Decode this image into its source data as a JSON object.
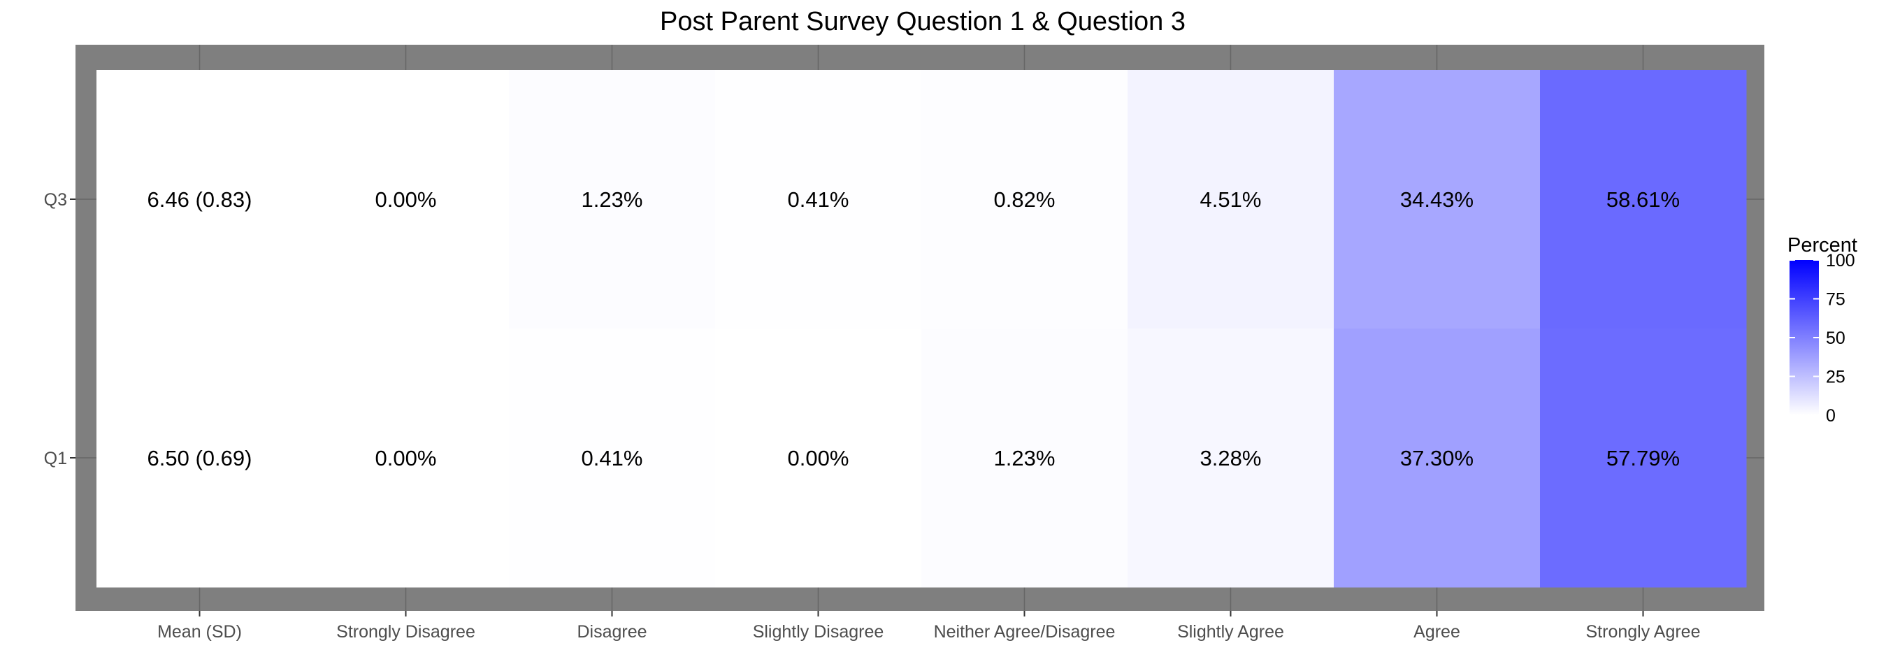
{
  "chart_data": {
    "type": "heatmap",
    "title": "Post Parent Survey Question 1 & Question 3",
    "xlabel": "",
    "ylabel": "",
    "categories": [
      "Mean (SD)",
      "Strongly Disagree",
      "Disagree",
      "Slightly Disagree",
      "Neither Agree/Disagree",
      "Slightly Agree",
      "Agree",
      "Strongly Agree"
    ],
    "rows": [
      "Q3",
      "Q1"
    ],
    "cells": [
      {
        "row": "Q3",
        "column": "Mean (SD)",
        "label": "6.46 (0.83)",
        "value": 0
      },
      {
        "row": "Q3",
        "column": "Strongly Disagree",
        "label": "0.00%",
        "value": 0.0
      },
      {
        "row": "Q3",
        "column": "Disagree",
        "label": "1.23%",
        "value": 1.23
      },
      {
        "row": "Q3",
        "column": "Slightly Disagree",
        "label": "0.41%",
        "value": 0.41
      },
      {
        "row": "Q3",
        "column": "Neither Agree/Disagree",
        "label": "0.82%",
        "value": 0.82
      },
      {
        "row": "Q3",
        "column": "Slightly Agree",
        "label": "4.51%",
        "value": 4.51
      },
      {
        "row": "Q3",
        "column": "Agree",
        "label": "34.43%",
        "value": 34.43
      },
      {
        "row": "Q3",
        "column": "Strongly Agree",
        "label": "58.61%",
        "value": 58.61
      },
      {
        "row": "Q1",
        "column": "Mean (SD)",
        "label": "6.50 (0.69)",
        "value": 0
      },
      {
        "row": "Q1",
        "column": "Strongly Disagree",
        "label": "0.00%",
        "value": 0.0
      },
      {
        "row": "Q1",
        "column": "Disagree",
        "label": "0.41%",
        "value": 0.41
      },
      {
        "row": "Q1",
        "column": "Slightly Disagree",
        "label": "0.00%",
        "value": 0.0
      },
      {
        "row": "Q1",
        "column": "Neither Agree/Disagree",
        "label": "1.23%",
        "value": 1.23
      },
      {
        "row": "Q1",
        "column": "Slightly Agree",
        "label": "3.28%",
        "value": 3.28
      },
      {
        "row": "Q1",
        "column": "Agree",
        "label": "37.30%",
        "value": 37.3
      },
      {
        "row": "Q1",
        "column": "Strongly Agree",
        "label": "57.79%",
        "value": 57.79
      }
    ],
    "color_scale": {
      "title": "Percent",
      "range": [
        0,
        100
      ],
      "ticks": [
        "0",
        "25",
        "50",
        "75",
        "100"
      ],
      "low_color": "#ffffff",
      "high_color": "#0000ff"
    },
    "panel_background": "#7f7f7f",
    "grid": true,
    "legend_position": "right"
  }
}
